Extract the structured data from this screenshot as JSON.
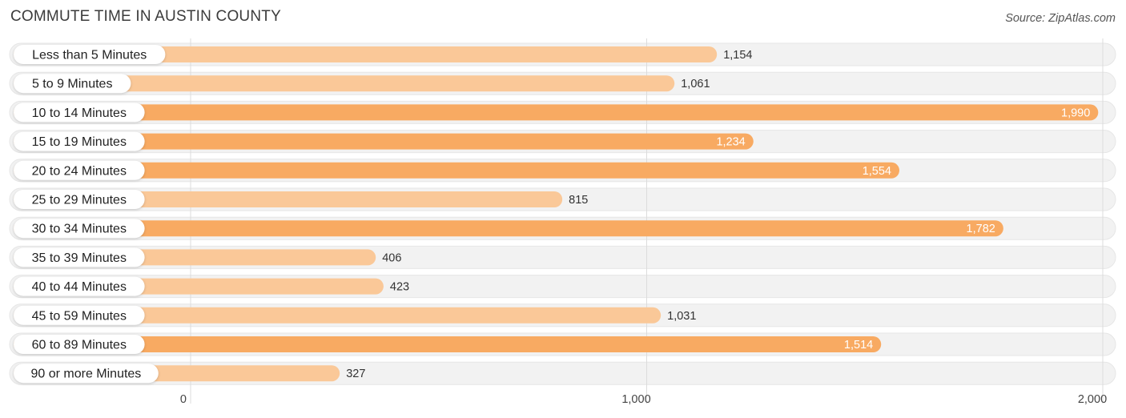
{
  "title": "COMMUTE TIME IN AUSTIN COUNTY",
  "source": "Source: ZipAtlas.com",
  "chart_data": {
    "type": "bar",
    "orientation": "horizontal",
    "title": "COMMUTE TIME IN AUSTIN COUNTY",
    "categories": [
      "Less than 5 Minutes",
      "5 to 9 Minutes",
      "10 to 14 Minutes",
      "15 to 19 Minutes",
      "20 to 24 Minutes",
      "25 to 29 Minutes",
      "30 to 34 Minutes",
      "35 to 39 Minutes",
      "40 to 44 Minutes",
      "45 to 59 Minutes",
      "60 to 89 Minutes",
      "90 or more Minutes"
    ],
    "values": [
      1154,
      1061,
      1990,
      1234,
      1554,
      815,
      1782,
      406,
      423,
      1031,
      1514,
      327
    ],
    "value_labels": [
      "1,154",
      "1,061",
      "1,990",
      "1,234",
      "1,554",
      "815",
      "1,782",
      "406",
      "423",
      "1,031",
      "1,514",
      "327"
    ],
    "xlim": [
      0,
      2000
    ],
    "xticks": [
      0,
      1000,
      2000
    ],
    "xtick_labels": [
      "0",
      "1,000",
      "2,000"
    ],
    "xlabel": "",
    "ylabel": "",
    "grid": true,
    "colors": {
      "bar_light": "#fac898",
      "bar_strong": "#f8aa62",
      "track": "#f2f2f2",
      "label_inside": "#ffffff",
      "label_outside": "#333333"
    }
  }
}
